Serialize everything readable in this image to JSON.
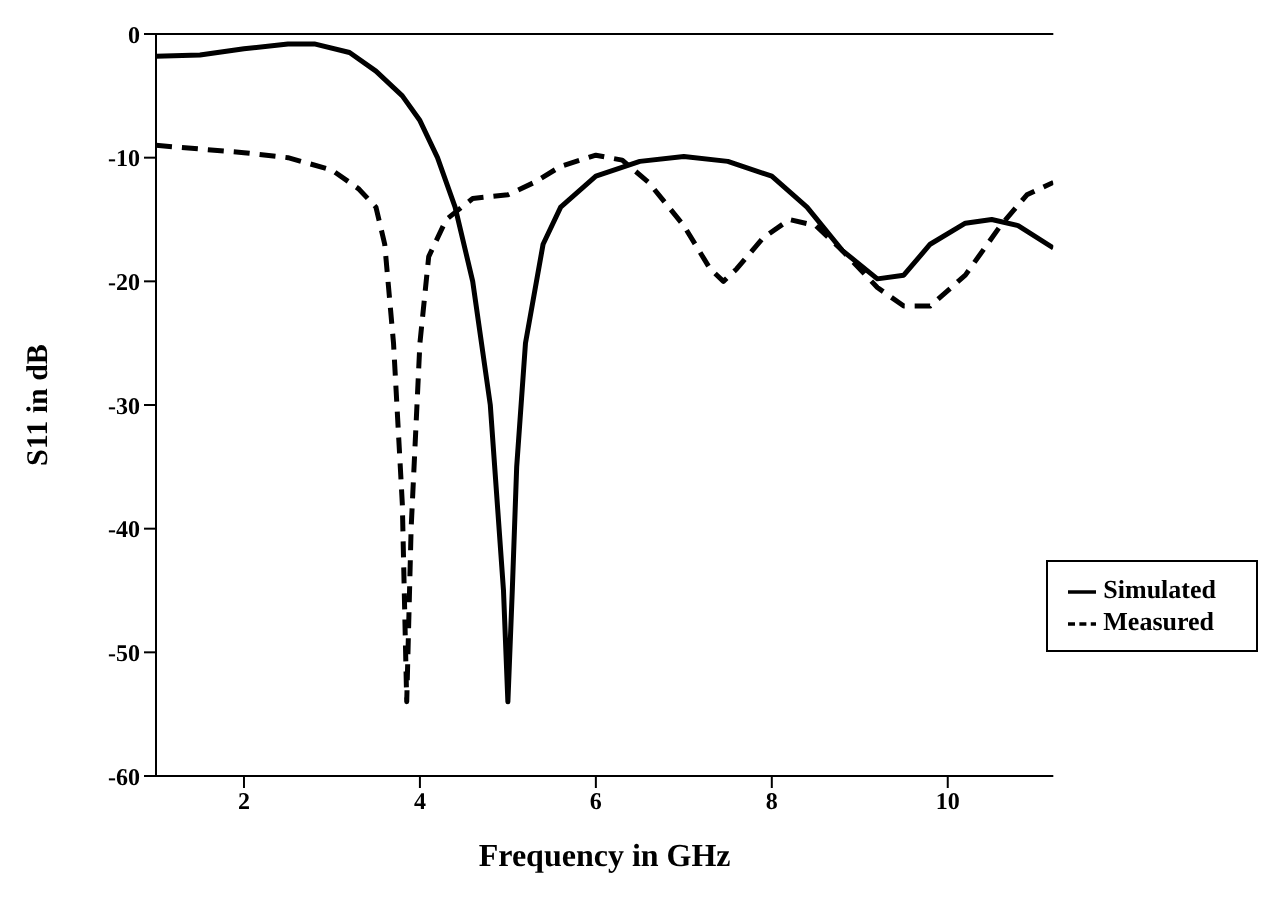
{
  "chart_data": {
    "type": "line",
    "xlabel": "Frequency in GHz",
    "ylabel": "S11 in dB",
    "xlim": [
      1,
      11.2
    ],
    "xticks": [
      2,
      4,
      6,
      8,
      10
    ],
    "ylim": [
      -60,
      0
    ],
    "yticks": [
      -60,
      -50,
      -40,
      -30,
      -20,
      -10,
      0
    ],
    "legend": "bottom right",
    "marker": "none",
    "series": [
      {
        "name": "Simulated",
        "color": "#000000",
        "line_style": "solid",
        "x": [
          1,
          1.5,
          2,
          2.5,
          2.8,
          3.2,
          3.5,
          3.8,
          4.0,
          4.2,
          4.4,
          4.6,
          4.8,
          4.95,
          5.0,
          5.05,
          5.1,
          5.2,
          5.4,
          5.6,
          6.0,
          6.5,
          7.0,
          7.5,
          8.0,
          8.4,
          8.8,
          9.2,
          9.5,
          9.8,
          10.2,
          10.5,
          10.8,
          11.2
        ],
        "values": [
          -1.8,
          -1.7,
          -1.2,
          -0.8,
          -0.8,
          -1.5,
          -3,
          -5,
          -7,
          -10,
          -14,
          -20,
          -30,
          -45,
          -54,
          -45,
          -35,
          -25,
          -17,
          -14,
          -11.5,
          -10.3,
          -9.9,
          -10.3,
          -11.5,
          -14,
          -17.5,
          -19.8,
          -19.5,
          -17,
          -15.3,
          -15,
          -15.5,
          -17.3
        ]
      },
      {
        "name": "Measured",
        "color": "#000000",
        "line_style": "dashed",
        "x": [
          1,
          2,
          2.5,
          3,
          3.3,
          3.5,
          3.6,
          3.7,
          3.8,
          3.85,
          3.9,
          4.0,
          4.1,
          4.3,
          4.6,
          5.0,
          5.3,
          5.6,
          6.0,
          6.3,
          6.6,
          7.0,
          7.3,
          7.45,
          7.6,
          7.9,
          8.2,
          8.5,
          8.8,
          9.2,
          9.5,
          9.8,
          10.2,
          10.6,
          10.9,
          11.2
        ],
        "values": [
          -9,
          -9.6,
          -10,
          -11,
          -12.5,
          -14,
          -17,
          -25,
          -38,
          -54,
          -40,
          -25,
          -18,
          -15,
          -13.3,
          -13,
          -12,
          -10.7,
          -9.8,
          -10.2,
          -12,
          -15.5,
          -19,
          -20,
          -19,
          -16.5,
          -15,
          -15.5,
          -17.5,
          -20.5,
          -22,
          -22,
          -19.5,
          -15.5,
          -13,
          -12
        ]
      }
    ]
  }
}
